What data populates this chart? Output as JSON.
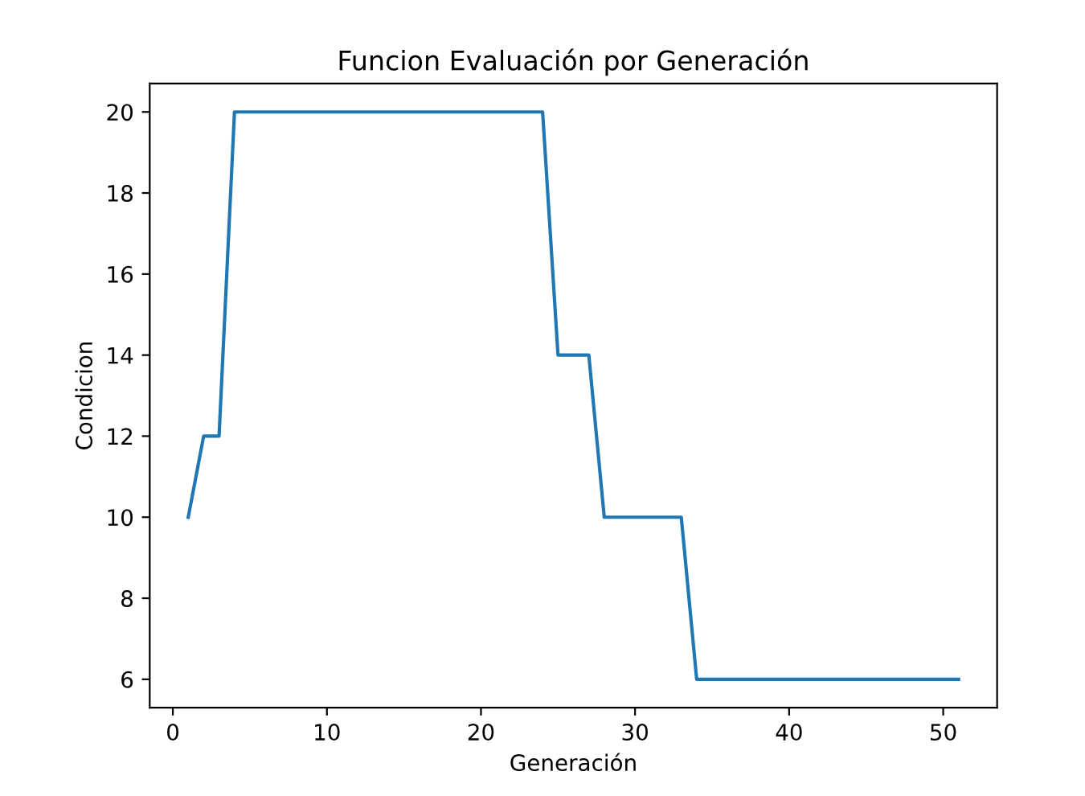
{
  "chart_data": {
    "type": "line",
    "title": "Funcion Evaluación por Generación",
    "xlabel": "Generación",
    "ylabel": "Condicion",
    "x": [
      1,
      2,
      3,
      4,
      5,
      6,
      7,
      8,
      9,
      10,
      11,
      12,
      13,
      14,
      15,
      16,
      17,
      18,
      19,
      20,
      21,
      22,
      23,
      24,
      25,
      26,
      27,
      28,
      29,
      30,
      31,
      32,
      33,
      34,
      35,
      36,
      37,
      38,
      39,
      40,
      41,
      42,
      43,
      44,
      45,
      46,
      47,
      48,
      49,
      50,
      51
    ],
    "series": [
      {
        "color": "#1f77b4",
        "values": [
          10,
          12,
          12,
          20,
          20,
          20,
          20,
          20,
          20,
          20,
          20,
          20,
          20,
          20,
          20,
          20,
          20,
          20,
          20,
          20,
          20,
          20,
          20,
          20,
          14,
          14,
          14,
          10,
          10,
          10,
          10,
          10,
          10,
          6,
          6,
          6,
          6,
          6,
          6,
          6,
          6,
          6,
          6,
          6,
          6,
          6,
          6,
          6,
          6,
          6,
          6
        ]
      }
    ],
    "xlim": [
      -1.5,
      53.5
    ],
    "ylim": [
      5.3,
      20.7
    ],
    "xticks": [
      0,
      10,
      20,
      30,
      40,
      50
    ],
    "yticks": [
      6,
      8,
      10,
      12,
      14,
      16,
      18,
      20
    ],
    "grid": false,
    "legend": false,
    "marker": "none",
    "line_style": "solid"
  }
}
